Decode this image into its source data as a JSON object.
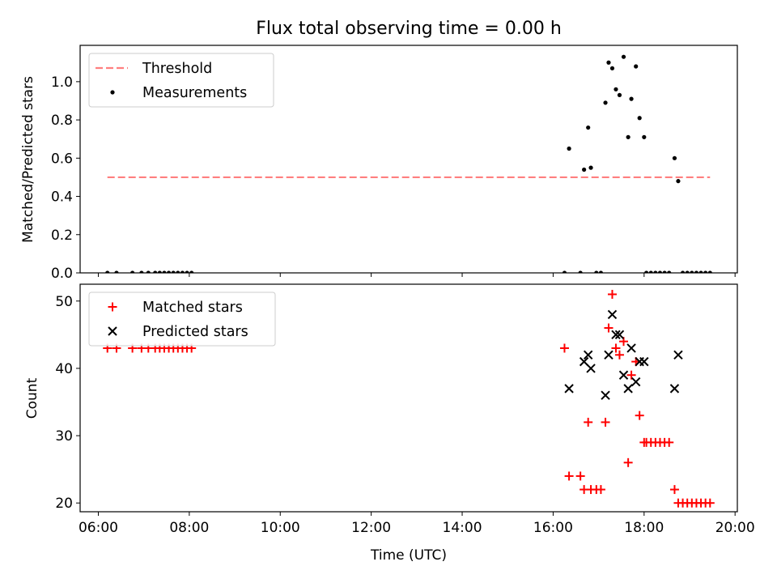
{
  "figure": {
    "title": "Flux total observing time = 0.00 h"
  },
  "chart_data": [
    {
      "type": "scatter",
      "ylabel": "Matched/Predicted stars",
      "xlabel": "",
      "x_unit": "hours UTC",
      "xlim": [
        5.6,
        20.05
      ],
      "ylim": [
        0,
        1.19
      ],
      "yticks": [
        0.0,
        0.2,
        0.4,
        0.6,
        0.8,
        1.0
      ],
      "ytick_labels": [
        "0.0",
        "0.2",
        "0.4",
        "0.6",
        "0.8",
        "1.0"
      ],
      "legend": {
        "position": "upper-left",
        "entries": [
          "Threshold",
          "Measurements"
        ]
      },
      "threshold": {
        "name": "Threshold",
        "value": 0.5,
        "x": [
          6.2,
          19.45
        ],
        "color": "#ff7f7f",
        "style": "dashed"
      },
      "series": [
        {
          "name": "Measurements",
          "marker": "dot",
          "color": "#000000",
          "points": [
            [
              6.2,
              0.0
            ],
            [
              6.4,
              0.0
            ],
            [
              6.75,
              0.0
            ],
            [
              6.95,
              0.0
            ],
            [
              7.1,
              0.0
            ],
            [
              7.25,
              0.0
            ],
            [
              7.35,
              0.0
            ],
            [
              7.45,
              0.0
            ],
            [
              7.55,
              0.0
            ],
            [
              7.65,
              0.0
            ],
            [
              7.75,
              0.0
            ],
            [
              7.85,
              0.0
            ],
            [
              7.95,
              0.0
            ],
            [
              8.05,
              0.0
            ],
            [
              16.25,
              0.0
            ],
            [
              16.6,
              0.0
            ],
            [
              16.95,
              0.0
            ],
            [
              17.05,
              0.0
            ],
            [
              18.05,
              0.0
            ],
            [
              18.15,
              0.0
            ],
            [
              18.25,
              0.0
            ],
            [
              18.35,
              0.0
            ],
            [
              18.45,
              0.0
            ],
            [
              18.55,
              0.0
            ],
            [
              18.85,
              0.0
            ],
            [
              18.95,
              0.0
            ],
            [
              19.05,
              0.0
            ],
            [
              19.15,
              0.0
            ],
            [
              19.25,
              0.0
            ],
            [
              19.35,
              0.0
            ],
            [
              19.45,
              0.0
            ],
            [
              16.35,
              0.65
            ],
            [
              16.68,
              0.54
            ],
            [
              16.77,
              0.76
            ],
            [
              16.83,
              0.55
            ],
            [
              17.15,
              0.89
            ],
            [
              17.22,
              1.1
            ],
            [
              17.3,
              1.07
            ],
            [
              17.38,
              0.96
            ],
            [
              17.46,
              0.93
            ],
            [
              17.55,
              1.13
            ],
            [
              17.65,
              0.71
            ],
            [
              17.72,
              0.91
            ],
            [
              17.82,
              1.08
            ],
            [
              17.9,
              0.81
            ],
            [
              18.0,
              0.71
            ],
            [
              18.67,
              0.6
            ],
            [
              18.75,
              0.48
            ]
          ]
        }
      ]
    },
    {
      "type": "scatter",
      "ylabel": "Count",
      "xlabel": "Time (UTC)",
      "x_unit": "hours UTC",
      "xlim": [
        5.6,
        20.05
      ],
      "ylim": [
        18.7,
        52.5
      ],
      "yticks": [
        20,
        30,
        40,
        50
      ],
      "ytick_labels": [
        "20",
        "30",
        "40",
        "50"
      ],
      "xticks": [
        6,
        8,
        10,
        12,
        14,
        16,
        18,
        20
      ],
      "xtick_labels": [
        "06:00",
        "08:00",
        "10:00",
        "12:00",
        "14:00",
        "16:00",
        "18:00",
        "20:00"
      ],
      "legend": {
        "position": "upper-left",
        "entries": [
          "Matched stars",
          "Predicted stars"
        ]
      },
      "series": [
        {
          "name": "Matched stars",
          "marker": "plus",
          "color": "#ff0000",
          "points": [
            [
              6.2,
              43
            ],
            [
              6.4,
              43
            ],
            [
              6.75,
              43
            ],
            [
              6.95,
              43
            ],
            [
              7.1,
              43
            ],
            [
              7.25,
              43
            ],
            [
              7.35,
              43
            ],
            [
              7.45,
              43
            ],
            [
              7.55,
              43
            ],
            [
              7.65,
              43
            ],
            [
              7.75,
              43
            ],
            [
              7.85,
              43
            ],
            [
              7.95,
              43
            ],
            [
              8.05,
              43
            ],
            [
              16.25,
              43
            ],
            [
              16.35,
              24
            ],
            [
              16.6,
              24
            ],
            [
              16.68,
              22
            ],
            [
              16.77,
              32
            ],
            [
              16.83,
              22
            ],
            [
              16.95,
              22
            ],
            [
              17.05,
              22
            ],
            [
              17.15,
              32
            ],
            [
              17.22,
              46
            ],
            [
              17.3,
              51
            ],
            [
              17.38,
              43
            ],
            [
              17.46,
              42
            ],
            [
              17.55,
              44
            ],
            [
              17.65,
              26
            ],
            [
              17.72,
              39
            ],
            [
              17.82,
              41
            ],
            [
              17.9,
              33
            ],
            [
              18.0,
              29
            ],
            [
              18.05,
              29
            ],
            [
              18.15,
              29
            ],
            [
              18.25,
              29
            ],
            [
              18.35,
              29
            ],
            [
              18.45,
              29
            ],
            [
              18.55,
              29
            ],
            [
              18.67,
              22
            ],
            [
              18.75,
              20
            ],
            [
              18.85,
              20
            ],
            [
              18.95,
              20
            ],
            [
              19.05,
              20
            ],
            [
              19.15,
              20
            ],
            [
              19.25,
              20
            ],
            [
              19.35,
              20
            ],
            [
              19.45,
              20
            ]
          ]
        },
        {
          "name": "Predicted stars",
          "marker": "x",
          "color": "#000000",
          "points": [
            [
              16.35,
              37
            ],
            [
              16.68,
              41
            ],
            [
              16.77,
              42
            ],
            [
              16.83,
              40
            ],
            [
              17.15,
              36
            ],
            [
              17.22,
              42
            ],
            [
              17.3,
              48
            ],
            [
              17.38,
              45
            ],
            [
              17.46,
              45
            ],
            [
              17.55,
              39
            ],
            [
              17.65,
              37
            ],
            [
              17.72,
              43
            ],
            [
              17.82,
              38
            ],
            [
              17.9,
              41
            ],
            [
              18.0,
              41
            ],
            [
              18.67,
              37
            ],
            [
              18.75,
              42
            ]
          ]
        }
      ]
    }
  ]
}
